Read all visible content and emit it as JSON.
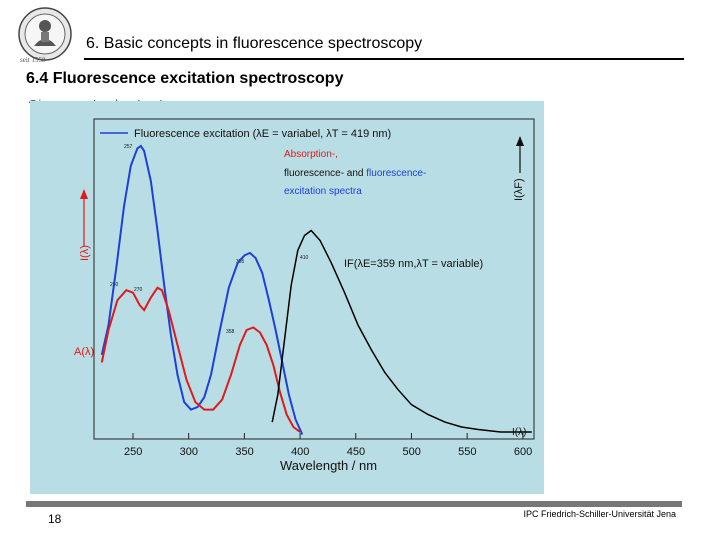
{
  "header": {
    "title": "6. Basic concepts in fluorescence spectroscopy",
    "logo_year": "seit 1558"
  },
  "section": {
    "title": "6.4 Fluorescence excitation spectroscopy"
  },
  "footer": {
    "page_number": "18",
    "institution": "IPC Friedrich-Schiller-Universität Jena"
  },
  "colors": {
    "figure_bg": "#b9dde4",
    "excitation": "#1f3fd9",
    "absorption": "#e01a1a",
    "fluorescence": "#000000"
  },
  "chart_data": {
    "type": "line",
    "xlabel": "Wavelength / nm",
    "xlim": [
      215,
      610
    ],
    "x_ticks": [
      250,
      300,
      350,
      400,
      450,
      500,
      550,
      600
    ],
    "legend": {
      "excitation_label": "Fluorescence excitation (λE = variabel, λT = 419 nm)",
      "legend_line2": "Absorption-,",
      "legend_line3a": "fluorescence- and ",
      "legend_line3b": "fluorescence-",
      "legend_line4": "excitation spectra",
      "emission_label": "IF(λE=359 nm,λT = variable)"
    },
    "peak_labels": [
      "257",
      "260",
      "270",
      "355",
      "358",
      "410"
    ],
    "series": [
      {
        "name": "Fluorescence excitation (λE = variabel, λT = 419 nm)",
        "points": [
          [
            222,
            0.3
          ],
          [
            228,
            0.42
          ],
          [
            235,
            0.65
          ],
          [
            242,
            0.9
          ],
          [
            248,
            1.06
          ],
          [
            254,
            1.13
          ],
          [
            257,
            1.14
          ],
          [
            260,
            1.12
          ],
          [
            266,
            1.0
          ],
          [
            272,
            0.8
          ],
          [
            278,
            0.58
          ],
          [
            284,
            0.38
          ],
          [
            290,
            0.22
          ],
          [
            296,
            0.11
          ],
          [
            302,
            0.08
          ],
          [
            308,
            0.09
          ],
          [
            314,
            0.13
          ],
          [
            320,
            0.22
          ],
          [
            328,
            0.4
          ],
          [
            336,
            0.57
          ],
          [
            344,
            0.67
          ],
          [
            350,
            0.7
          ],
          [
            355,
            0.71
          ],
          [
            360,
            0.69
          ],
          [
            366,
            0.63
          ],
          [
            372,
            0.52
          ],
          [
            378,
            0.4
          ],
          [
            384,
            0.27
          ],
          [
            390,
            0.14
          ],
          [
            396,
            0.04
          ],
          [
            402,
            -0.02
          ]
        ]
      },
      {
        "name": "Absorption",
        "points": [
          [
            222,
            0.27
          ],
          [
            228,
            0.4
          ],
          [
            236,
            0.52
          ],
          [
            244,
            0.56
          ],
          [
            250,
            0.55
          ],
          [
            256,
            0.5
          ],
          [
            260,
            0.48
          ],
          [
            266,
            0.53
          ],
          [
            272,
            0.57
          ],
          [
            276,
            0.56
          ],
          [
            282,
            0.48
          ],
          [
            290,
            0.34
          ],
          [
            298,
            0.2
          ],
          [
            306,
            0.11
          ],
          [
            314,
            0.08
          ],
          [
            322,
            0.08
          ],
          [
            330,
            0.12
          ],
          [
            338,
            0.22
          ],
          [
            346,
            0.34
          ],
          [
            352,
            0.4
          ],
          [
            358,
            0.41
          ],
          [
            364,
            0.39
          ],
          [
            370,
            0.34
          ],
          [
            376,
            0.26
          ],
          [
            382,
            0.15
          ],
          [
            388,
            0.06
          ],
          [
            394,
            0.01
          ],
          [
            400,
            -0.01
          ]
        ]
      },
      {
        "name": "IF(λE=359 nm,λT = variable)",
        "points": [
          [
            375,
            0.03
          ],
          [
            380,
            0.14
          ],
          [
            386,
            0.36
          ],
          [
            392,
            0.58
          ],
          [
            398,
            0.72
          ],
          [
            404,
            0.78
          ],
          [
            410,
            0.8
          ],
          [
            418,
            0.76
          ],
          [
            428,
            0.67
          ],
          [
            440,
            0.55
          ],
          [
            452,
            0.42
          ],
          [
            464,
            0.32
          ],
          [
            476,
            0.23
          ],
          [
            488,
            0.16
          ],
          [
            500,
            0.1
          ],
          [
            515,
            0.06
          ],
          [
            530,
            0.03
          ],
          [
            545,
            0.01
          ],
          [
            560,
            0.0
          ],
          [
            580,
            -0.01
          ],
          [
            600,
            -0.01
          ],
          [
            608,
            -0.01
          ]
        ]
      }
    ]
  }
}
